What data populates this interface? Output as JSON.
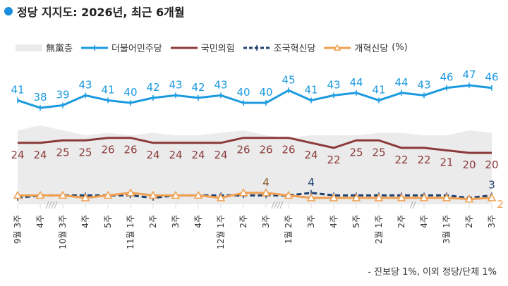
{
  "title": "정당 지지도: 2026년, 최근 6개월",
  "footnote": "- 진보당 1%, 이외 정당/단체 1%",
  "chart_data": {
    "type": "line",
    "title": "정당 지지도: 2026년, 최근 6개월",
    "unit_label": "(%)",
    "legend_position": "top",
    "grid": false,
    "categories": [
      "9월 3주",
      "4주",
      "10월 3주",
      "4주",
      "5주",
      "11월 1주",
      "2주",
      "3주",
      "4주",
      "12월 1주",
      "2주",
      "3주",
      "1월 2주",
      "3주",
      "4주",
      "5주",
      "2월 1주",
      "2주",
      "4주",
      "3월 1주",
      "2주",
      "3주"
    ],
    "breaks_after_index": [
      1,
      11,
      17
    ],
    "series": [
      {
        "name": "無黨층",
        "style": "area",
        "color": "#ebebeb",
        "values": [
          29,
          31,
          29,
          27,
          28,
          27,
          28,
          27,
          27,
          28,
          29,
          27,
          26,
          27,
          27,
          27,
          28,
          28,
          27,
          27,
          29,
          28
        ]
      },
      {
        "name": "더불어민주당",
        "style": "line",
        "color": "#1b9ae0",
        "labeled": true,
        "values": [
          41,
          38,
          39,
          43,
          41,
          40,
          42,
          43,
          42,
          43,
          40,
          40,
          45,
          41,
          43,
          44,
          41,
          44,
          43,
          46,
          47,
          46
        ]
      },
      {
        "name": "국민의힘",
        "style": "line",
        "color": "#8b3a3a",
        "labeled": true,
        "values": [
          24,
          24,
          25,
          25,
          26,
          26,
          24,
          24,
          24,
          24,
          26,
          26,
          26,
          24,
          22,
          25,
          25,
          22,
          22,
          21,
          20,
          20
        ]
      },
      {
        "name": "조국혁신당",
        "style": "dashed",
        "color": "#1f3f6e",
        "values": [
          2,
          3,
          3,
          3,
          3,
          3,
          2,
          3,
          3,
          3,
          3,
          3,
          3,
          4,
          3,
          3,
          3,
          3,
          3,
          3,
          2,
          3
        ],
        "labels": {
          "13": "4",
          "21": "3"
        }
      },
      {
        "name": "개혁신당",
        "style": "triangle",
        "color": "#f0a050",
        "values": [
          3,
          3,
          3,
          2,
          3,
          4,
          3,
          3,
          3,
          2,
          4,
          4,
          3,
          2,
          2,
          2,
          2,
          2,
          2,
          2,
          1.5,
          2
        ],
        "labels": {
          "11": "4",
          "21": "2"
        }
      }
    ]
  }
}
